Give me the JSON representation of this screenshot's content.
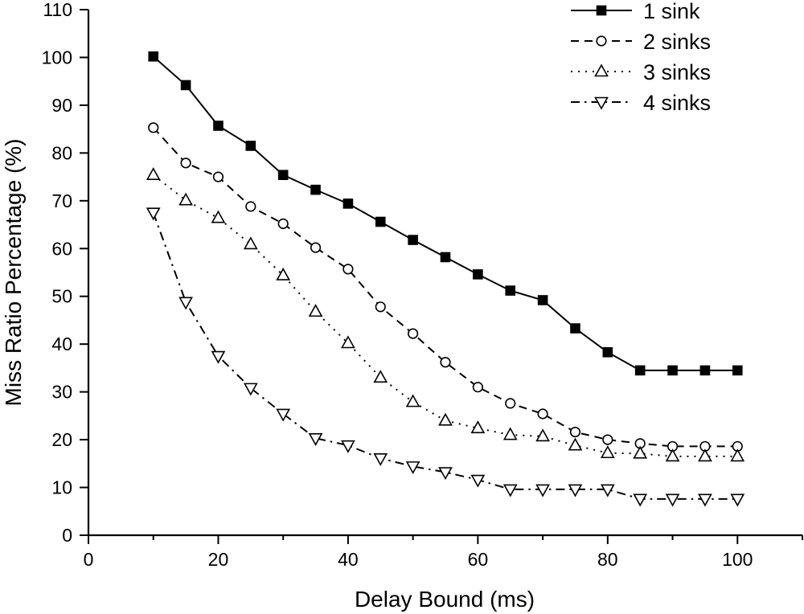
{
  "chart_data": {
    "type": "line",
    "xlabel": "Delay Bound (ms)",
    "ylabel": "Miss Ratio Percentage (%)",
    "xlim": [
      0,
      110
    ],
    "ylim": [
      0,
      110
    ],
    "xticks": [
      0,
      20,
      40,
      60,
      80,
      100
    ],
    "yticks": [
      0,
      10,
      20,
      30,
      40,
      50,
      60,
      70,
      80,
      90,
      100,
      110
    ],
    "x": [
      10,
      15,
      20,
      25,
      30,
      35,
      40,
      45,
      50,
      55,
      60,
      65,
      70,
      75,
      80,
      85,
      90,
      95,
      100
    ],
    "grid": false,
    "legend_position": "top-right",
    "series": [
      {
        "name": "1 sink",
        "marker": "filled-square",
        "line_style": "solid",
        "values": [
          100.2,
          94.2,
          85.7,
          81.5,
          75.4,
          72.3,
          69.4,
          65.6,
          61.8,
          58.2,
          54.6,
          51.2,
          49.2,
          43.3,
          38.3,
          34.5,
          34.5,
          34.5,
          34.5
        ]
      },
      {
        "name": "2 sinks",
        "marker": "open-circle",
        "line_style": "dashed",
        "values": [
          85.3,
          77.9,
          75.0,
          68.8,
          65.2,
          60.2,
          55.7,
          47.8,
          42.2,
          36.2,
          31.0,
          27.6,
          25.4,
          21.6,
          20.0,
          19.2,
          18.6,
          18.6,
          18.6
        ]
      },
      {
        "name": "3 sinks",
        "marker": "open-triangle-up",
        "line_style": "dotted",
        "values": [
          75.4,
          70.1,
          66.4,
          60.9,
          54.4,
          46.8,
          40.2,
          33.0,
          27.9,
          24.0,
          22.4,
          21.0,
          20.7,
          18.8,
          17.2,
          17.1,
          16.5,
          16.5,
          16.5
        ]
      },
      {
        "name": "4 sinks",
        "marker": "open-triangle-down",
        "line_style": "dash-dot",
        "values": [
          67.5,
          48.8,
          37.5,
          30.8,
          25.4,
          20.3,
          18.8,
          16.1,
          14.4,
          13.2,
          11.6,
          9.6,
          9.6,
          9.6,
          9.6,
          7.6,
          7.6,
          7.6,
          7.6
        ]
      }
    ]
  }
}
